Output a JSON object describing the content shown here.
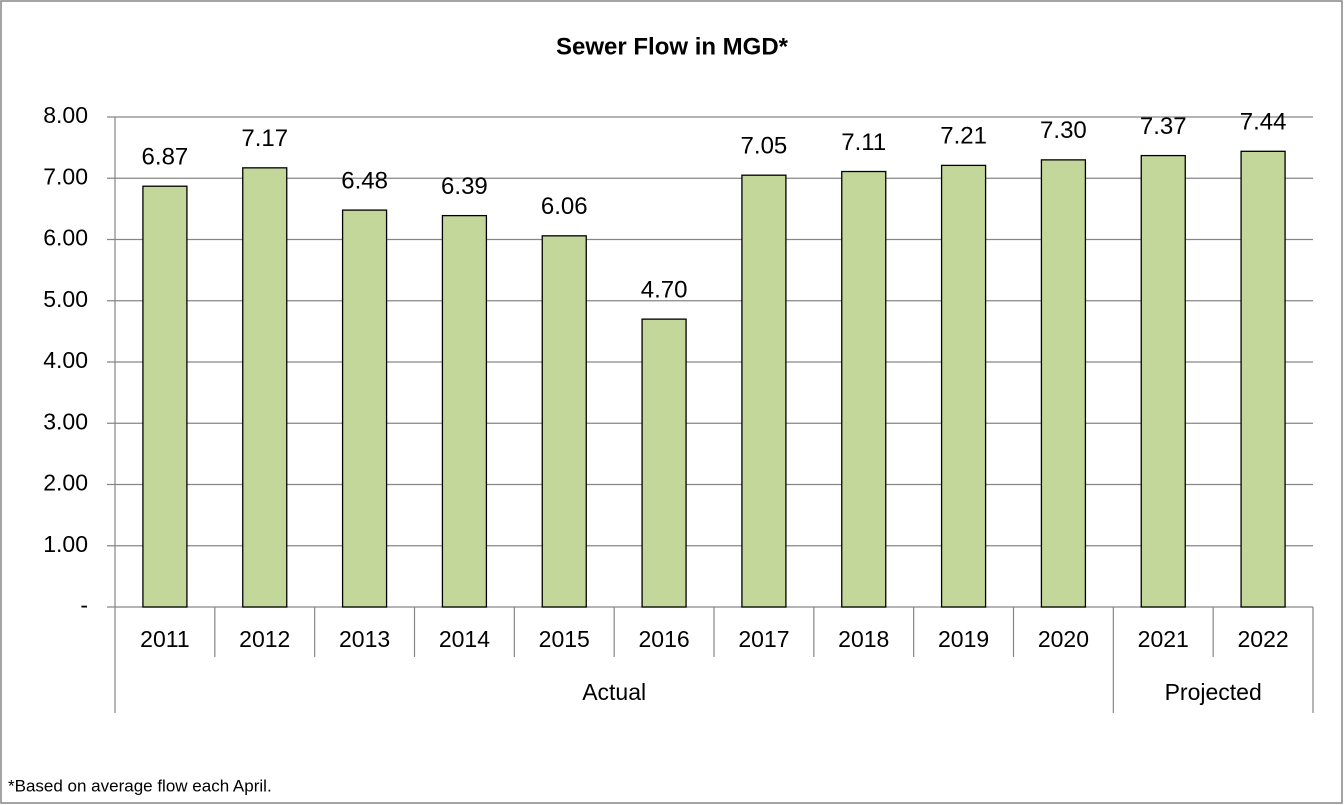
{
  "chart_data": {
    "type": "bar",
    "title": "Sewer Flow in MGD*",
    "categories": [
      "2011",
      "2012",
      "2013",
      "2014",
      "2015",
      "2016",
      "2017",
      "2018",
      "2019",
      "2020",
      "2021",
      "2022"
    ],
    "values": [
      6.87,
      7.17,
      6.48,
      6.39,
      6.06,
      4.7,
      7.05,
      7.11,
      7.21,
      7.3,
      7.37,
      7.44
    ],
    "value_labels": [
      "6.87",
      "7.17",
      "6.48",
      "6.39",
      "6.06",
      "4.70",
      "7.05",
      "7.11",
      "7.21",
      "7.30",
      "7.37",
      "7.44"
    ],
    "groups": [
      {
        "label": "Actual",
        "from": "2011",
        "to": "2020"
      },
      {
        "label": "Projected",
        "from": "2021",
        "to": "2022"
      }
    ],
    "color": "#c4d79b",
    "ylim": [
      0,
      8
    ],
    "yticks": [
      {
        "value": 0,
        "label": "-"
      },
      {
        "value": 1,
        "label": "1.00"
      },
      {
        "value": 2,
        "label": "2.00"
      },
      {
        "value": 3,
        "label": "3.00"
      },
      {
        "value": 4,
        "label": "4.00"
      },
      {
        "value": 5,
        "label": "5.00"
      },
      {
        "value": 6,
        "label": "6.00"
      },
      {
        "value": 7,
        "label": "7.00"
      },
      {
        "value": 8,
        "label": "8.00"
      }
    ],
    "grid": true,
    "footnote": "*Based on average flow each April."
  }
}
